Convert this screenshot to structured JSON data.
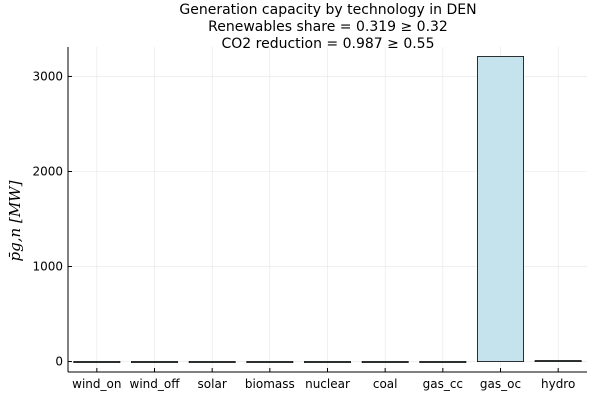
{
  "chart_data": {
    "type": "bar",
    "title_lines": [
      "Generation capacity by technology in DEN",
      "Renewables share = 0.319 ≥ 0.32",
      "CO2 reduction = 0.987 ≥ 0.55"
    ],
    "ylabel": "p̄g,n [MW]",
    "xlabel": "",
    "categories": [
      "wind_on",
      "wind_off",
      "solar",
      "biomass",
      "nuclear",
      "coal",
      "gas_cc",
      "gas_oc",
      "hydro"
    ],
    "values": [
      0,
      0,
      0,
      0,
      0,
      0,
      0,
      3210,
      10
    ],
    "yticks": [
      0,
      1000,
      2000,
      3000
    ],
    "ylim": [
      -110,
      3310
    ],
    "grid": true,
    "legend": "none",
    "colors": {
      "bar_fill": "#c5e3ec",
      "bar_stroke": "#000000",
      "grid": "#e6e6e6",
      "axis": "#000000"
    }
  }
}
